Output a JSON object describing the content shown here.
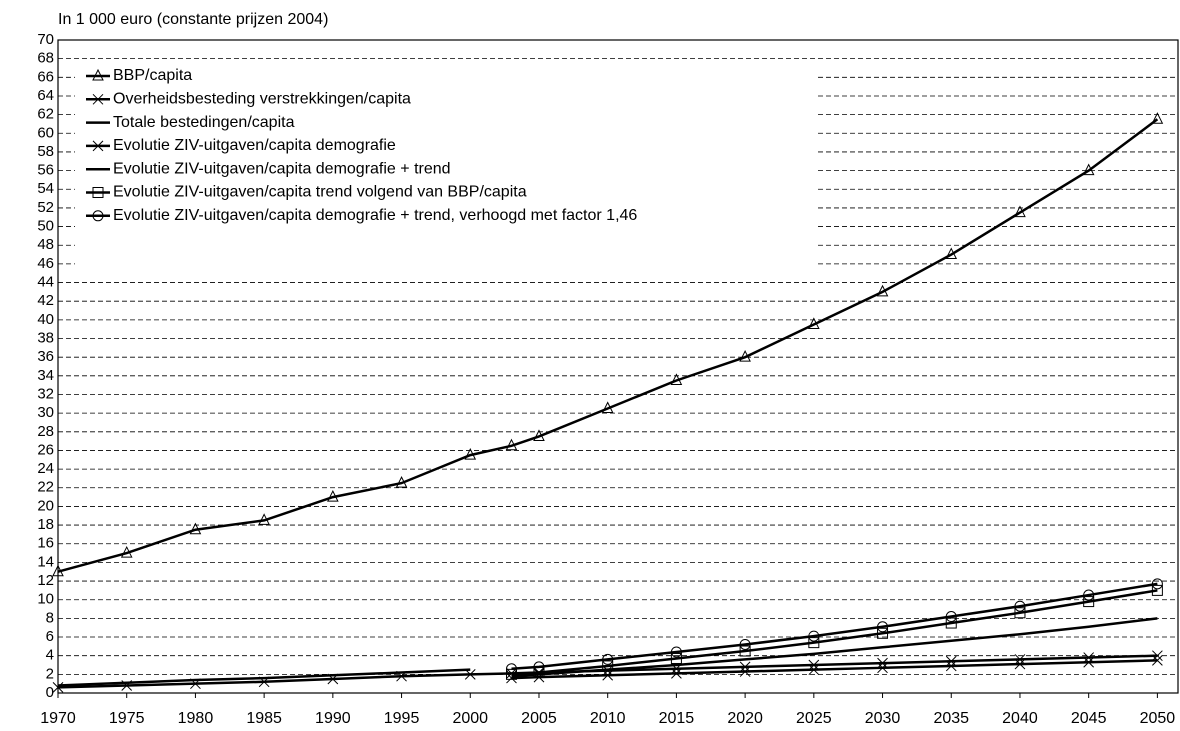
{
  "chart_data": {
    "type": "line",
    "title": "In 1 000 euro (constante prijzen 2004)",
    "x": [
      1970,
      1975,
      1980,
      1985,
      1990,
      1995,
      2000,
      2003,
      2005,
      2010,
      2015,
      2020,
      2025,
      2030,
      2035,
      2040,
      2045,
      2050
    ],
    "xlim": [
      1970,
      2051.5
    ],
    "xticks": [
      1970,
      1975,
      1980,
      1985,
      1990,
      1995,
      2000,
      2005,
      2010,
      2015,
      2020,
      2025,
      2030,
      2035,
      2040,
      2045,
      2050
    ],
    "ylim": [
      0,
      70
    ],
    "yticks": [
      0,
      2,
      4,
      6,
      8,
      10,
      12,
      14,
      16,
      18,
      20,
      22,
      24,
      26,
      28,
      30,
      32,
      34,
      36,
      38,
      40,
      42,
      44,
      46,
      48,
      50,
      52,
      54,
      56,
      58,
      60,
      62,
      64,
      66,
      68,
      70
    ],
    "grid": true,
    "legend": "upper left",
    "series": [
      {
        "name": "BBP/capita",
        "color": "#000000",
        "marker": "triangle",
        "values": [
          13,
          15,
          17.5,
          18.5,
          21,
          22.5,
          25.5,
          26.5,
          27.5,
          30.5,
          33.5,
          36,
          39.5,
          43,
          47,
          51.5,
          56,
          61.5
        ]
      },
      {
        "name": "Overheidsbesteding verstrekkingen/capita",
        "color": "#000000",
        "marker": "cross",
        "values": [
          0.6,
          0.8,
          1.0,
          1.2,
          1.5,
          1.8,
          2.0,
          2.1,
          2.2,
          2.4,
          2.6,
          2.8,
          3.0,
          3.2,
          3.4,
          3.6,
          3.8,
          4.0
        ]
      },
      {
        "name": "Totale bestedingen/capita",
        "color": "#000000",
        "marker": "none",
        "values": [
          0.8,
          1.1,
          1.4,
          1.6,
          1.9,
          2.2,
          2.5,
          null,
          null,
          null,
          null,
          null,
          null,
          null,
          null,
          null,
          null,
          null
        ]
      },
      {
        "name": "Evolutie ZIV-uitgaven/capita demografie",
        "color": "#000000",
        "marker": "cross",
        "values": [
          null,
          null,
          null,
          null,
          null,
          null,
          null,
          1.6,
          1.7,
          1.9,
          2.1,
          2.3,
          2.5,
          2.7,
          2.9,
          3.1,
          3.3,
          3.5
        ]
      },
      {
        "name": "Evolutie ZIV-uitgaven/capita demografie + trend",
        "color": "#000000",
        "marker": "none",
        "values": [
          null,
          null,
          null,
          null,
          null,
          null,
          null,
          1.8,
          2.0,
          2.5,
          3.0,
          3.6,
          4.2,
          4.9,
          5.6,
          6.3,
          7.1,
          8.0
        ]
      },
      {
        "name": "Evolutie ZIV-uitgaven/capita trend volgend van BBP/capita",
        "color": "#000000",
        "marker": "square",
        "values": [
          null,
          null,
          null,
          null,
          null,
          null,
          null,
          2.0,
          2.2,
          2.9,
          3.7,
          4.5,
          5.4,
          6.4,
          7.5,
          8.6,
          9.8,
          11.0
        ]
      },
      {
        "name": "Evolutie ZIV-uitgaven/capita demografie + trend, verhoogd met factor 1,46",
        "color": "#000000",
        "marker": "circle",
        "values": [
          null,
          null,
          null,
          null,
          null,
          null,
          null,
          2.6,
          2.8,
          3.6,
          4.4,
          5.2,
          6.1,
          7.1,
          8.2,
          9.3,
          10.5,
          11.7
        ]
      }
    ]
  }
}
